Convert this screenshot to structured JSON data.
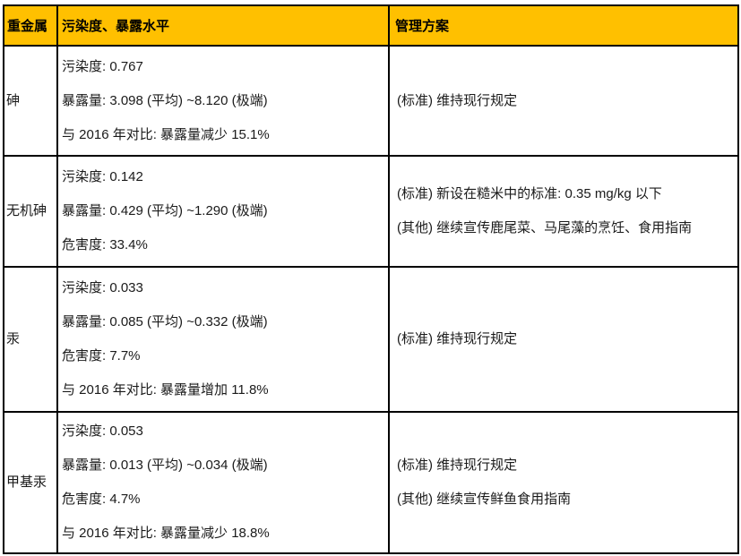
{
  "table": {
    "header_bg": "#FFC000",
    "border_color": "#000000",
    "header": {
      "metal": "重金属",
      "level": "污染度、暴露水平",
      "mgmt": "管理方案"
    },
    "rows": [
      {
        "metal": "砷",
        "levels": [
          "污染度: 0.767",
          "暴露量: 3.098 (平均) ~8.120 (极端)",
          "与 2016 年对比: 暴露量减少 15.1%"
        ],
        "mgmt": [
          "(标准) 维持现行规定"
        ]
      },
      {
        "metal": "无机砷",
        "levels": [
          "污染度: 0.142",
          "暴露量: 0.429 (平均) ~1.290 (极端)",
          "危害度: 33.4%"
        ],
        "mgmt": [
          "(标准) 新设在糙米中的标准: 0.35 mg/kg 以下",
          "(其他) 继续宣传鹿尾菜、马尾藻的烹饪、食用指南"
        ]
      },
      {
        "metal": "汞",
        "levels": [
          "污染度: 0.033",
          "暴露量: 0.085 (平均) ~0.332 (极端)",
          "危害度: 7.7%",
          "与 2016 年对比: 暴露量增加 11.8%"
        ],
        "mgmt": [
          "(标准) 维持现行规定"
        ]
      },
      {
        "metal": "甲基汞",
        "levels": [
          "污染度: 0.053",
          "暴露量: 0.013 (平均) ~0.034 (极端)",
          "危害度: 4.7%",
          "与 2016 年对比: 暴露量减少 18.8%"
        ],
        "mgmt": [
          "(标准) 维持现行规定",
          "(其他) 继续宣传鲜鱼食用指南"
        ]
      }
    ]
  }
}
